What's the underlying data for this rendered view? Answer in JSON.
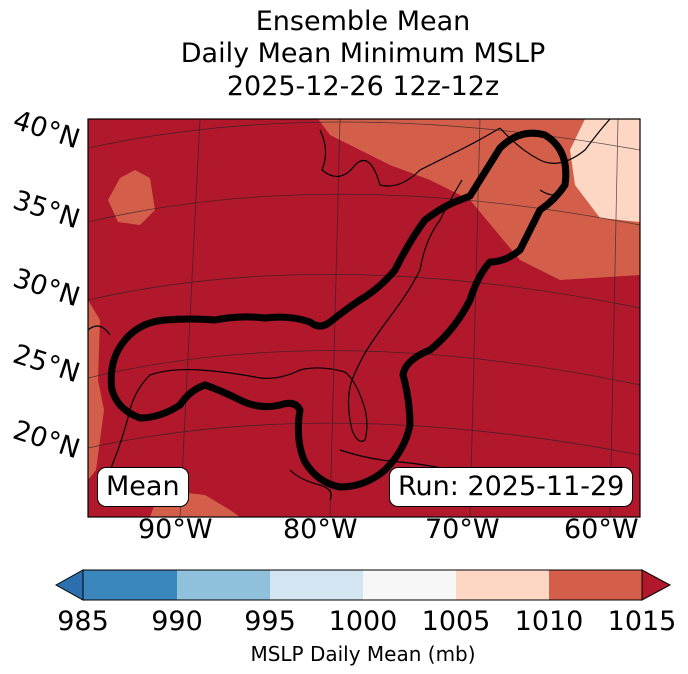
{
  "title": {
    "line1": "Ensemble Mean",
    "line2": "Daily Mean Minimum MSLP",
    "line3": "2025-12-26 12z-12z"
  },
  "map": {
    "lat_labels": [
      "40°N",
      "35°N",
      "30°N",
      "25°N",
      "20°N"
    ],
    "lon_labels": [
      "90°W",
      "80°W",
      "70°W",
      "60°W"
    ],
    "left_box": "Mean",
    "right_box": "Run: 2025-11-29",
    "contour_color": "#000000"
  },
  "colorbar": {
    "label": "MSLP Daily Mean (mb)",
    "ticks": [
      "985",
      "990",
      "995",
      "1000",
      "1005",
      "1010",
      "1015"
    ],
    "colors": [
      "#2c6fae",
      "#3b86bd",
      "#8fc1dd",
      "#d2e5f0",
      "#f7f7f7",
      "#fdd7c4",
      "#d35f4b",
      "#b2182b"
    ]
  }
}
